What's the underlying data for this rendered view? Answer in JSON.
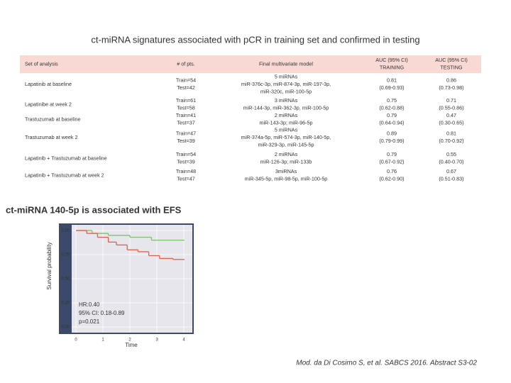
{
  "header": {
    "title": "ct-miRNA signatures associated with pCR in training set and confirmed in testing"
  },
  "table": {
    "columns": [
      [
        "Set of analysis"
      ],
      [
        "# of pts."
      ],
      [
        "Final multivariate model"
      ],
      [
        "AUC (95% CI)",
        "TRAINING"
      ],
      [
        "AUC (95% CI)",
        "TESTING"
      ]
    ],
    "rows": [
      [
        [
          "Lapatinib at baseline"
        ],
        [
          "Train=54",
          "Test=42"
        ],
        [
          "5 miRNAs",
          "miR-376c-3p, miR-874-3p, miR-197-3p,",
          "miR-320c, miR-100-5p"
        ],
        [
          "0.81",
          "(0.69-0.93)"
        ],
        [
          "0.86",
          "(0.73-0.98)"
        ]
      ],
      [
        [
          "Lapatinibe at week 2"
        ],
        [
          "Train=61",
          "Test=58"
        ],
        [
          "3 miRNAs",
          "miR-144-3p, miR-362-3p, miR-100-5p"
        ],
        [
          "0.75",
          "(0.62-0.88)"
        ],
        [
          "0.71",
          "(0.55-0.86)"
        ]
      ],
      [
        [
          "Trastuzumab at baseline"
        ],
        [
          "Train=41",
          "Test=37"
        ],
        [
          "2 miRNAs",
          "miR-143-3p; miR-96-5p"
        ],
        [
          "0.79",
          "(0.64-0.94)"
        ],
        [
          "0.47",
          "(0.30-0.65)"
        ]
      ],
      [
        [
          "Trastuzumab at week 2"
        ],
        [
          "Train=47",
          "Test=39"
        ],
        [
          "5 miRNAs",
          "miR-374a-5p, miR-574-3p, miR-140-5p,",
          "miR-329-3p, miR-145-5p"
        ],
        [
          "0.89",
          "(0.79-0.99)"
        ],
        [
          "0.81",
          "(0.70-0.92)"
        ]
      ],
      [
        [
          "Lapatinib + Trastuzumab at baseline"
        ],
        [
          "Train=54",
          "Test=39"
        ],
        [
          "2 miRNAs",
          "miR-126-3p; miR-133b"
        ],
        [
          "0.79",
          "(0.67-0.92)"
        ],
        [
          "0.55",
          "(0.40-0.70)"
        ]
      ],
      [
        [
          "Lapatinib + Trastuzumab at week 2"
        ],
        [
          "Train=48",
          "Test=47"
        ],
        [
          "3miRNAs",
          "miR-345-5p, miR-98-5p, miR-100-5p"
        ],
        [
          "0.76",
          "(0.62-0.90)"
        ],
        [
          "0.67",
          "(0.51-0.83)"
        ]
      ]
    ]
  },
  "section": {
    "title": "ct-miRNA 140-5p is associated with EFS"
  },
  "km_plot": {
    "type": "step",
    "ylabel": "Survival probability",
    "xlabel": "Time",
    "xticks": [
      0,
      1,
      2,
      3,
      4
    ],
    "yticks": [
      {
        "value": 0,
        "label": "0.00"
      },
      {
        "value": 0.25,
        "label": "0.25"
      },
      {
        "value": 0.5,
        "label": "0.50"
      },
      {
        "value": 0.75,
        "label": "0.75"
      },
      {
        "value": 1,
        "label": "1.00"
      }
    ],
    "annotations": [
      "HR:0.40",
      "95% CI: 0.18-0.89",
      "p=0.021"
    ],
    "series": [
      {
        "color": "#7cc36b",
        "x": [
          0,
          0.6,
          1.2,
          2.0,
          2.8,
          4.0
        ],
        "y": [
          1,
          0.97,
          0.95,
          0.93,
          0.9,
          0.9
        ]
      },
      {
        "color": "#e0614c",
        "x": [
          0,
          0.4,
          0.8,
          1.2,
          1.5,
          1.9,
          2.3,
          2.7,
          3.1,
          3.6,
          4.0
        ],
        "y": [
          1,
          0.97,
          0.93,
          0.88,
          0.85,
          0.8,
          0.78,
          0.74,
          0.71,
          0.7,
          0.7
        ]
      }
    ]
  },
  "footer": {
    "citation": "Mod. da Di Cosimo S, et al. SABCS 2016. Abstract S3-02"
  }
}
